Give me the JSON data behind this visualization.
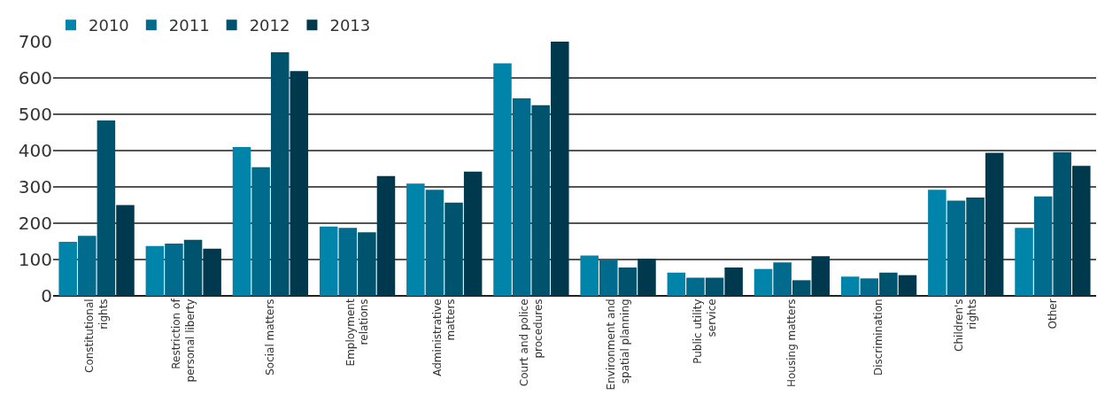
{
  "chart_data": {
    "type": "bar",
    "categories": [
      "Constitutional rights",
      "Restriction of personal liberty",
      "Social matters",
      "Employment relations",
      "Administrative matters",
      "Court and police procedures",
      "Environment and spatial planning",
      "Public utility service",
      "Housing matters",
      "Discrimination",
      "Children's rights",
      "Other"
    ],
    "series": [
      {
        "name": "2010",
        "color": "#0084a9",
        "values": [
          149,
          137,
          410,
          191,
          309,
          640,
          111,
          64,
          74,
          53,
          292,
          187
        ]
      },
      {
        "name": "2011",
        "color": "#006b8c",
        "values": [
          165,
          144,
          354,
          187,
          292,
          544,
          98,
          50,
          92,
          48,
          262,
          274
        ]
      },
      {
        "name": "2012",
        "color": "#00536d",
        "values": [
          483,
          154,
          671,
          175,
          257,
          525,
          78,
          50,
          43,
          64,
          271,
          396
        ]
      },
      {
        "name": "2013",
        "color": "#00394d",
        "values": [
          250,
          130,
          619,
          330,
          342,
          700,
          102,
          78,
          109,
          57,
          394,
          358
        ]
      }
    ],
    "ylim": [
      0,
      700
    ],
    "yticks": [
      0,
      100,
      200,
      300,
      400,
      500,
      600,
      700
    ],
    "grid": "y",
    "legend": "top left"
  }
}
